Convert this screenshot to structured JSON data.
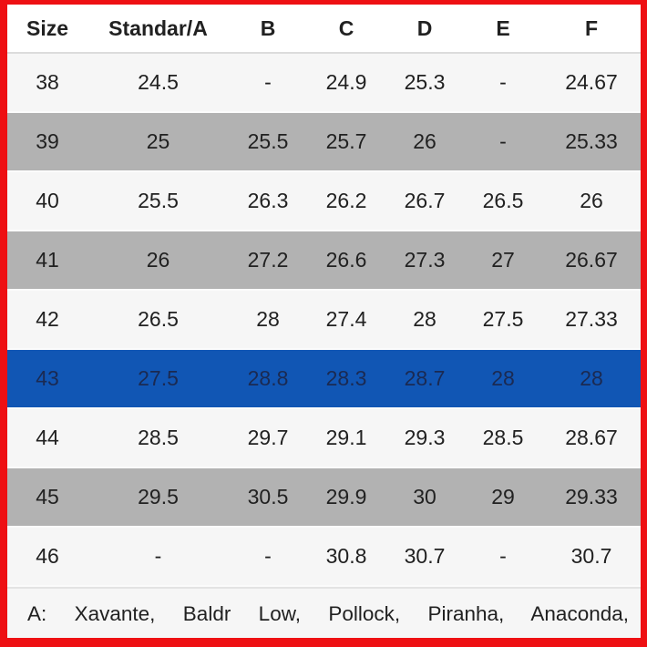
{
  "table": {
    "columns": [
      "Size",
      "Standar/A",
      "B",
      "C",
      "D",
      "E",
      "F"
    ],
    "rows": [
      {
        "variant": "light",
        "cells": [
          "38",
          "24.5",
          "-",
          "24.9",
          "25.3",
          "-",
          "24.67"
        ]
      },
      {
        "variant": "gray",
        "cells": [
          "39",
          "25",
          "25.5",
          "25.7",
          "26",
          "-",
          "25.33"
        ]
      },
      {
        "variant": "light",
        "cells": [
          "40",
          "25.5",
          "26.3",
          "26.2",
          "26.7",
          "26.5",
          "26"
        ]
      },
      {
        "variant": "gray",
        "cells": [
          "41",
          "26",
          "27.2",
          "26.6",
          "27.3",
          "27",
          "26.67"
        ]
      },
      {
        "variant": "light",
        "cells": [
          "42",
          "26.5",
          "28",
          "27.4",
          "28",
          "27.5",
          "27.33"
        ]
      },
      {
        "variant": "selected",
        "cells": [
          "43",
          "27.5",
          "28.8",
          "28.3",
          "28.7",
          "28",
          "28"
        ]
      },
      {
        "variant": "light",
        "cells": [
          "44",
          "28.5",
          "29.7",
          "29.1",
          "29.3",
          "28.5",
          "28.67"
        ]
      },
      {
        "variant": "gray",
        "cells": [
          "45",
          "29.5",
          "30.5",
          "29.9",
          "30",
          "29",
          "29.33"
        ]
      },
      {
        "variant": "light",
        "cells": [
          "46",
          "-",
          "-",
          "30.8",
          "30.7",
          "-",
          "30.7"
        ]
      }
    ],
    "selected_row_size": "43"
  },
  "footnote": {
    "text": "A: Xavante, Baldr Low, Pollock, Piranha, Anaconda,"
  },
  "colors": {
    "frame-red": "#ee1013",
    "row-gray": "#b2b2b2",
    "row-selected-blue": "#1156b4",
    "row-light": "#f6f6f6",
    "text-dark": "#212121",
    "text-on-blue": "#1b2a52",
    "divider": "#dcdcdc"
  }
}
